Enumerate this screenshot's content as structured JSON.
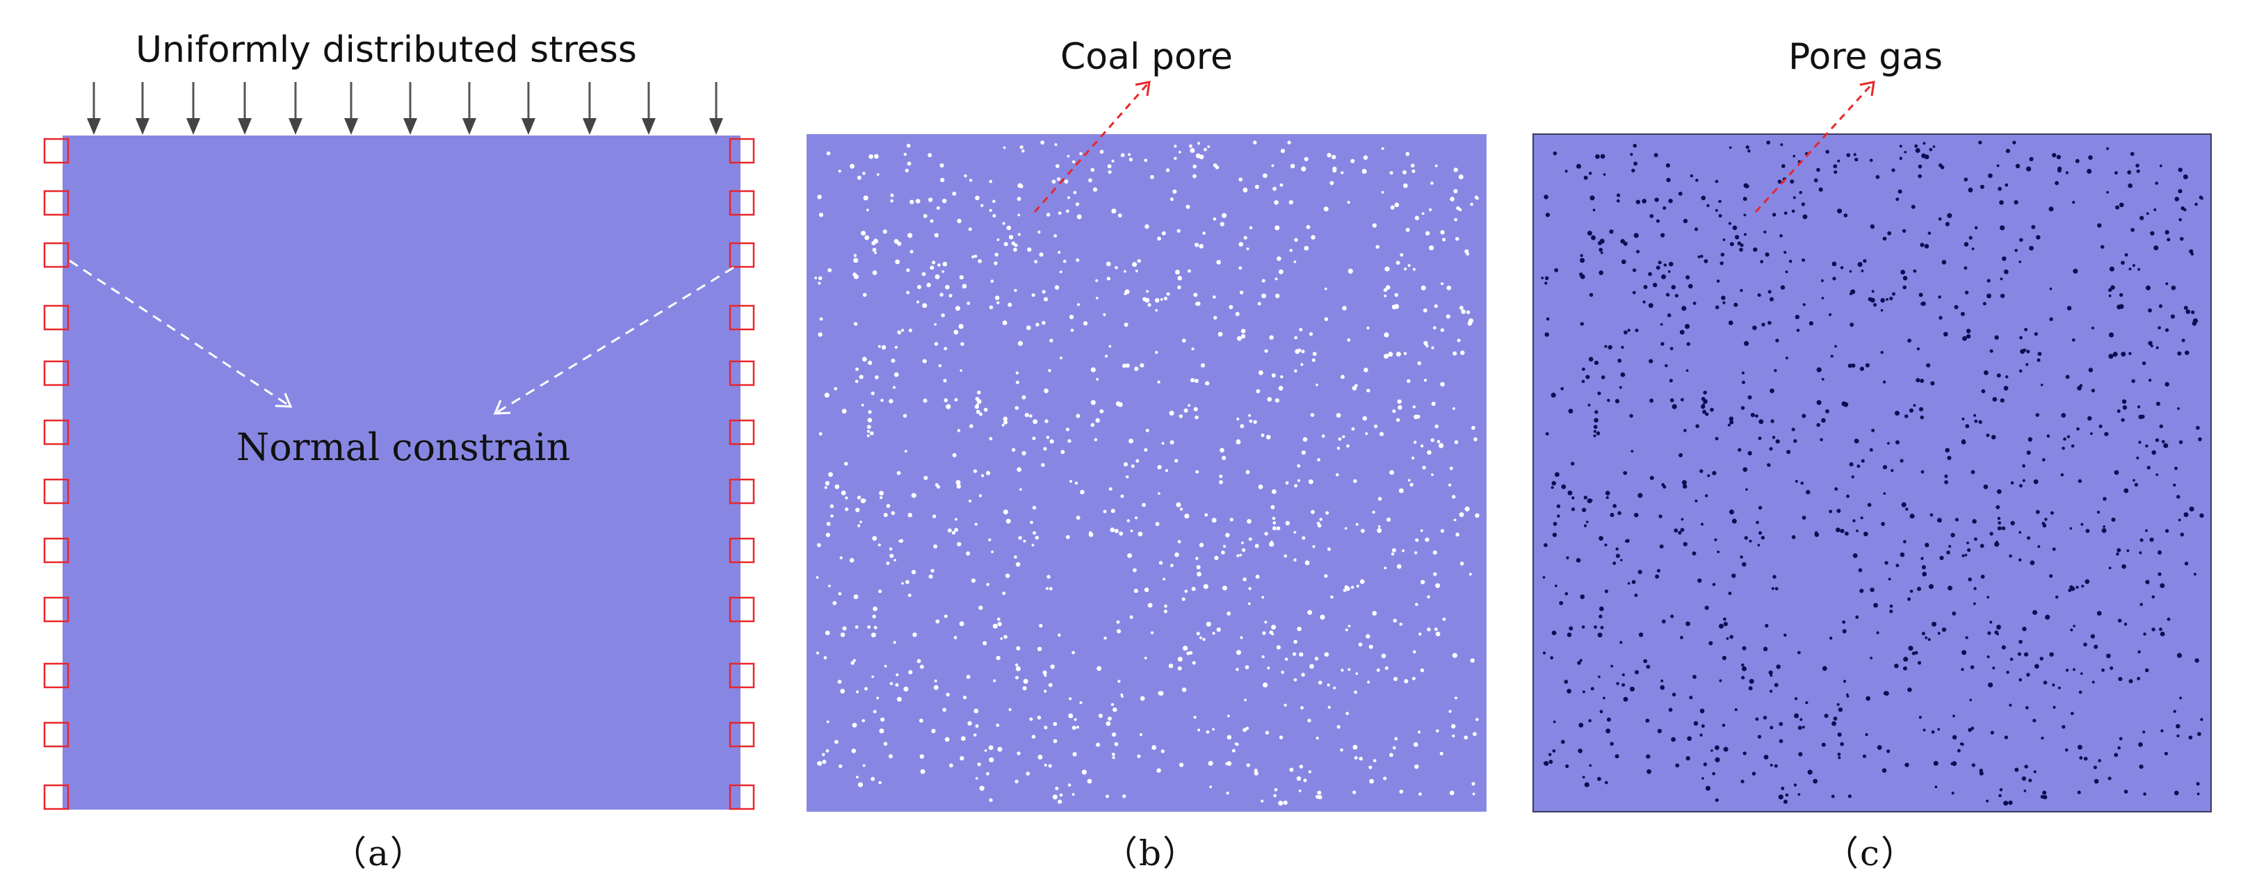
{
  "panels": {
    "a": {
      "label": "（a）",
      "top_annotation": "Uniformly distributed stress",
      "middle_annotation": "Normal constrain"
    },
    "b": {
      "label": "（b）",
      "annotation": "Coal pore"
    },
    "c": {
      "label": "（c）",
      "annotation": "Pore gas"
    }
  },
  "colors": {
    "matrix_fill": "#8787e3",
    "pore_color": "#ffffff",
    "gas_color": "#0d0d52",
    "constraint_box": "#e8262a",
    "stress_arrow": "#555555",
    "leader_dashed_white": "#ffffff",
    "leader_dashed_red": "#e8262a"
  }
}
